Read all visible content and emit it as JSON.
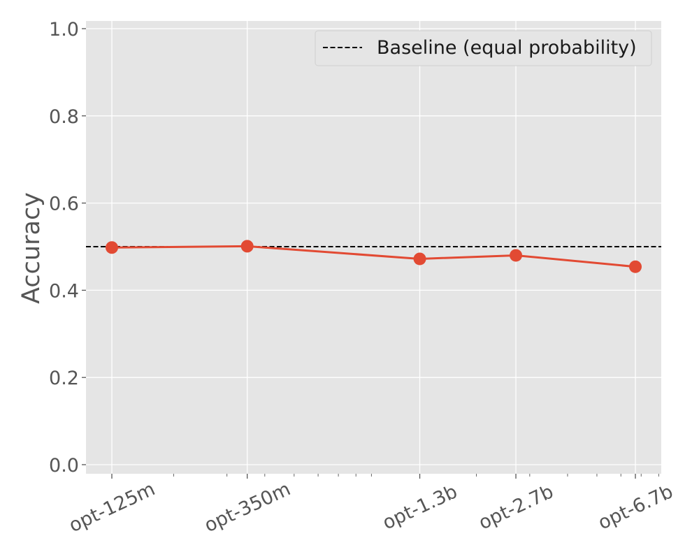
{
  "chart_data": {
    "type": "line",
    "title": "",
    "xlabel": "",
    "ylabel": "Accuracy",
    "x_scale": "log",
    "categories": [
      "opt-125m",
      "opt-350m",
      "opt-1.3b",
      "opt-2.7b",
      "opt-6.7b"
    ],
    "x_params_billions": [
      0.125,
      0.35,
      1.3,
      2.7,
      6.7
    ],
    "ylim": [
      0.0,
      1.0
    ],
    "yticks": [
      "0.0",
      "0.2",
      "0.4",
      "0.6",
      "0.8",
      "1.0"
    ],
    "grid": true,
    "legend_position": "top-right",
    "series": [
      {
        "values": [
          0.498,
          0.501,
          0.472,
          0.48,
          0.454
        ],
        "color": "#e24a33"
      }
    ],
    "baseline": {
      "name": "Baseline (equal probability)",
      "value": 0.5,
      "color": "#000000",
      "style": "dashed"
    },
    "colors": {
      "plot_background": "#e5e5e5",
      "grid": "#ffffff",
      "tick_text": "#555555"
    }
  }
}
